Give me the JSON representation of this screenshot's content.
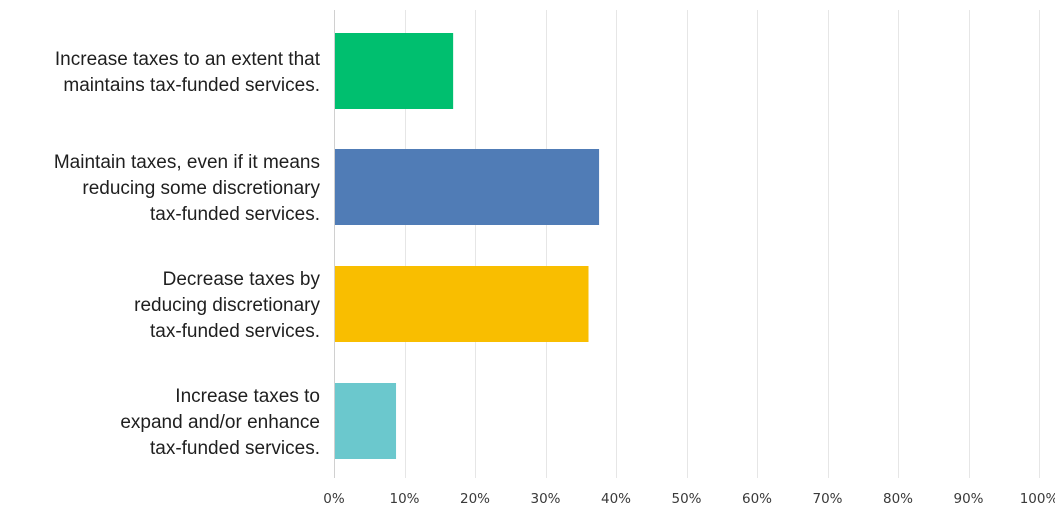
{
  "chart_data": {
    "type": "bar",
    "orientation": "horizontal",
    "categories": [
      [
        "Increase taxes to an extent that",
        "maintains tax-funded services."
      ],
      [
        "Maintain taxes, even if it means",
        "reducing some discretionary",
        "tax-funded services."
      ],
      [
        "Decrease taxes by",
        "reducing discretionary",
        "tax-funded services."
      ],
      [
        "Increase taxes to",
        "expand and/or enhance",
        "tax-funded services."
      ]
    ],
    "values": [
      16.9,
      37.6,
      36.1,
      8.8
    ],
    "colors": [
      "#00bf6f",
      "#507cb6",
      "#f9be00",
      "#6bc8cd"
    ],
    "xlim": [
      0,
      100
    ],
    "xticks": [
      "0%",
      "10%",
      "20%",
      "30%",
      "40%",
      "50%",
      "60%",
      "70%",
      "80%",
      "90%",
      "100%"
    ],
    "grid": true,
    "legend": "none",
    "title": "",
    "xlabel": "",
    "ylabel": ""
  }
}
